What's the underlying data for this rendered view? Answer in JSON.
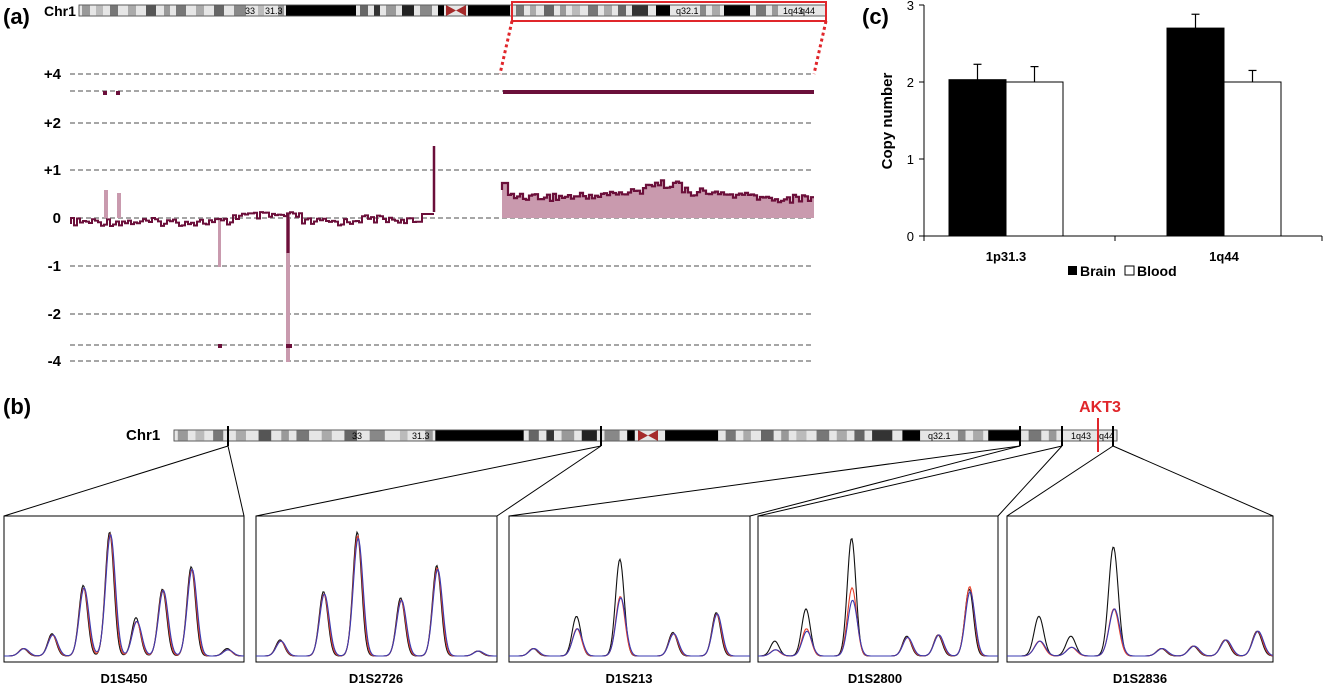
{
  "panel_labels": {
    "a": "(a)",
    "b": "(b)",
    "c": "(c)"
  },
  "colors": {
    "cnv": "#6b0f3a",
    "cnv_light": "#c99aae",
    "highlight": "#e0262b",
    "trace_black": "#111111",
    "trace_red": "#e8402a",
    "trace_blue": "#3a3ab0"
  },
  "panel_a": {
    "chromosome_label": "Chr1",
    "band_labels": [
      "33",
      "31.3",
      "q32.1",
      "1q43",
      "q44"
    ],
    "y_levels": [
      "+4",
      "+2",
      "+1",
      "0",
      "-1",
      "-2",
      "-4"
    ]
  },
  "panel_b": {
    "chromosome_label": "Chr1",
    "band_labels": [
      "33",
      "31.3",
      "q32.1",
      "1q43",
      "q44"
    ],
    "gene_label": "AKT3",
    "markers": [
      {
        "name": "D1S450",
        "peaks": [
          [
            0.08,
            0.06,
            0.06,
            0.06
          ],
          [
            0.2,
            0.18,
            0.17,
            0.17
          ],
          [
            0.33,
            0.57,
            0.55,
            0.55
          ],
          [
            0.44,
            1.0,
            0.98,
            0.98
          ],
          [
            0.55,
            0.31,
            0.28,
            0.28
          ],
          [
            0.66,
            0.54,
            0.53,
            0.53
          ],
          [
            0.78,
            0.72,
            0.7,
            0.7
          ],
          [
            0.93,
            0.06,
            0.05,
            0.05
          ]
        ]
      },
      {
        "name": "D1S2726",
        "peaks": [
          [
            0.1,
            0.13,
            0.12,
            0.12
          ],
          [
            0.28,
            0.52,
            0.5,
            0.5
          ],
          [
            0.42,
            1.0,
            0.97,
            0.95
          ],
          [
            0.6,
            0.47,
            0.45,
            0.45
          ],
          [
            0.75,
            0.73,
            0.71,
            0.7
          ],
          [
            0.92,
            0.04,
            0.04,
            0.04
          ]
        ]
      },
      {
        "name": "D1S213",
        "peaks": [
          [
            0.1,
            0.06,
            0.06,
            0.06
          ],
          [
            0.28,
            0.32,
            0.22,
            0.22
          ],
          [
            0.46,
            0.78,
            0.48,
            0.47
          ],
          [
            0.68,
            0.19,
            0.18,
            0.18
          ],
          [
            0.86,
            0.35,
            0.34,
            0.34
          ]
        ]
      },
      {
        "name": "D1S2800",
        "peaks": [
          [
            0.07,
            0.12,
            0.05,
            0.05
          ],
          [
            0.2,
            0.38,
            0.22,
            0.2
          ],
          [
            0.39,
            0.95,
            0.55,
            0.45
          ],
          [
            0.62,
            0.16,
            0.15,
            0.15
          ],
          [
            0.75,
            0.17,
            0.17,
            0.17
          ],
          [
            0.88,
            0.54,
            0.56,
            0.52
          ]
        ]
      },
      {
        "name": "D1S2836",
        "peaks": [
          [
            0.12,
            0.32,
            0.12,
            0.12
          ],
          [
            0.24,
            0.16,
            0.07,
            0.07
          ],
          [
            0.4,
            0.88,
            0.38,
            0.38
          ],
          [
            0.58,
            0.06,
            0.06,
            0.06
          ],
          [
            0.7,
            0.08,
            0.08,
            0.08
          ],
          [
            0.82,
            0.13,
            0.13,
            0.13
          ],
          [
            0.94,
            0.2,
            0.2,
            0.2
          ]
        ]
      }
    ]
  },
  "chart_data": {
    "type": "bar",
    "categories": [
      "1p31.3",
      "1q44"
    ],
    "series": [
      {
        "name": "Brain",
        "values": [
          2.03,
          2.7
        ],
        "errors": [
          0.2,
          0.18
        ],
        "color": "#000000"
      },
      {
        "name": "Blood",
        "values": [
          2.0,
          2.0
        ],
        "errors": [
          0.2,
          0.15
        ],
        "color": "#ffffff"
      }
    ],
    "ylabel": "Copy number",
    "xlabel": "",
    "ylim": [
      0,
      3
    ],
    "yticks": [
      "0",
      "1",
      "2",
      "3"
    ],
    "legend_position": "bottom",
    "legend": [
      "Brain",
      "Blood"
    ]
  }
}
